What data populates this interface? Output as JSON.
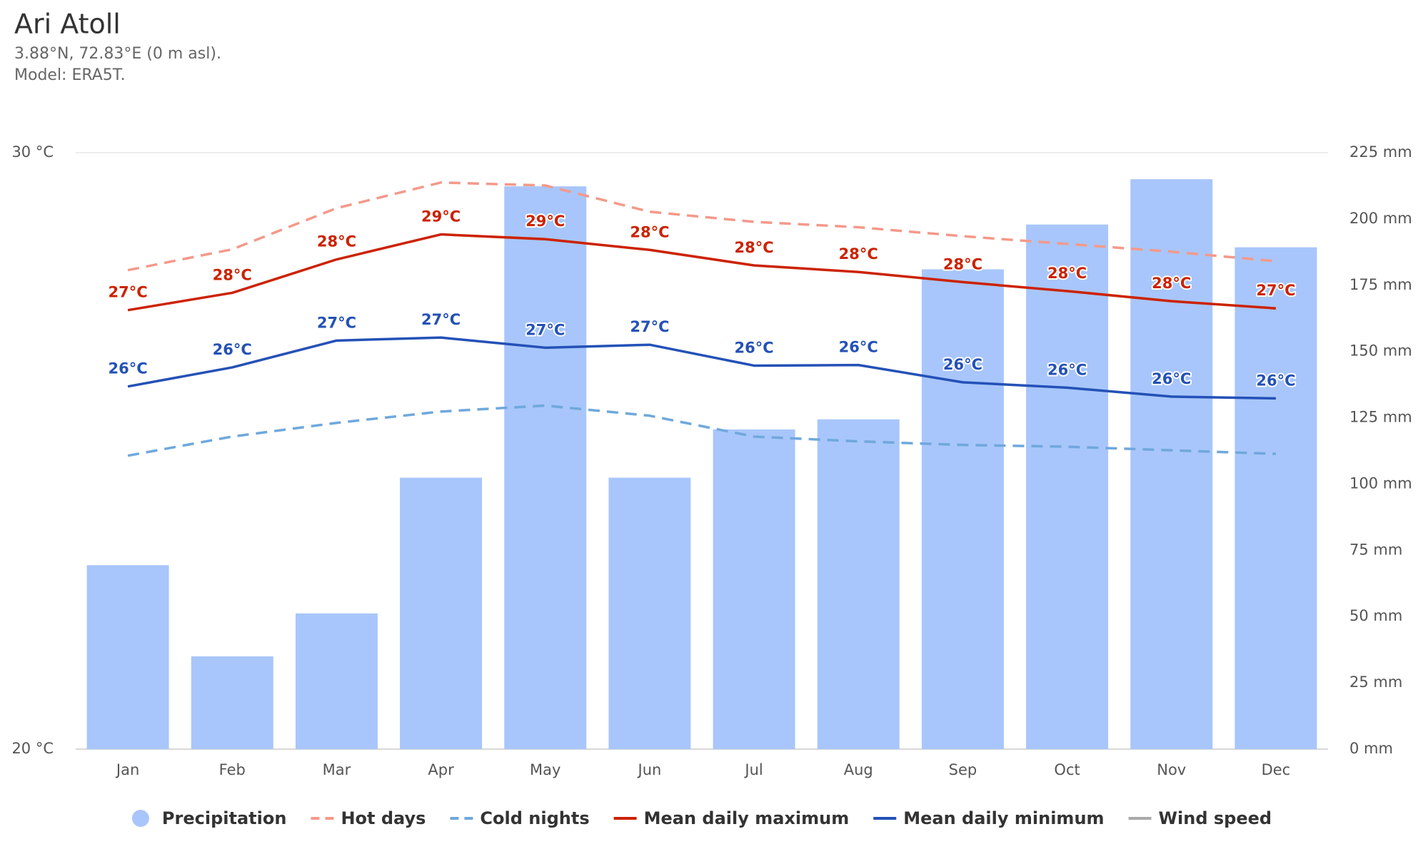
{
  "chart_data": {
    "type": "combo",
    "title": "Ari Atoll",
    "subtitle": [
      "3.88°N, 72.83°E (0 m asl).",
      "Model: ERA5T."
    ],
    "categories": [
      "Jan",
      "Feb",
      "Mar",
      "Apr",
      "May",
      "Jun",
      "Jul",
      "Aug",
      "Sep",
      "Oct",
      "Nov",
      "Dec"
    ],
    "ylim": [
      20,
      30
    ],
    "yticks": [
      {
        "value": 20,
        "label": "20 °C"
      },
      {
        "value": 30,
        "label": "30 °C"
      }
    ],
    "y2lim": [
      0,
      225
    ],
    "y2ticks": [
      {
        "value": 0,
        "label": "0 mm"
      },
      {
        "value": 25,
        "label": "25 mm"
      },
      {
        "value": 50,
        "label": "50 mm"
      },
      {
        "value": 75,
        "label": "75 mm"
      },
      {
        "value": 100,
        "label": "100 mm"
      },
      {
        "value": 125,
        "label": "125 mm"
      },
      {
        "value": 150,
        "label": "150 mm"
      },
      {
        "value": 175,
        "label": "175 mm"
      },
      {
        "value": 200,
        "label": "200 mm"
      },
      {
        "value": 225,
        "label": "225 mm"
      }
    ],
    "grid": true,
    "legend": "bottom",
    "series": [
      {
        "name": "Precipitation",
        "type": "bar",
        "axis": "y2",
        "color": "#a8c6fb",
        "values": [
          69.4,
          35.0,
          51.2,
          102.4,
          212.3,
          102.4,
          120.6,
          124.4,
          181.0,
          197.9,
          215.0,
          189.3
        ]
      },
      {
        "name": "Hot days",
        "type": "line",
        "dashed": true,
        "color": "#f4998a",
        "values": [
          28.03,
          28.38,
          29.07,
          29.5,
          29.45,
          29.01,
          28.84,
          28.75,
          28.6,
          28.47,
          28.34,
          28.18
        ]
      },
      {
        "name": "Cold nights",
        "type": "line",
        "dashed": true,
        "color": "#6fa8dc",
        "values": [
          24.92,
          25.24,
          25.47,
          25.66,
          25.76,
          25.59,
          25.24,
          25.16,
          25.1,
          25.07,
          25.01,
          24.95
        ]
      },
      {
        "name": "Mean daily maximum",
        "type": "line",
        "color": "#cc2200",
        "values": [
          27.36,
          27.65,
          28.21,
          28.63,
          28.55,
          28.37,
          28.11,
          28.0,
          27.83,
          27.68,
          27.51,
          27.39
        ],
        "value_labels": [
          "27°C",
          "28°C",
          "28°C",
          "29°C",
          "29°C",
          "28°C",
          "28°C",
          "28°C",
          "28°C",
          "28°C",
          "28°C",
          "27°C"
        ]
      },
      {
        "name": "Mean daily minimum",
        "type": "line",
        "color": "#2451b7",
        "values": [
          26.08,
          26.4,
          26.85,
          26.9,
          26.73,
          26.78,
          26.43,
          26.44,
          26.15,
          26.06,
          25.91,
          25.88
        ],
        "value_labels": [
          "26°C",
          "26°C",
          "27°C",
          "27°C",
          "27°C",
          "27°C",
          "26°C",
          "26°C",
          "26°C",
          "26°C",
          "26°C",
          "26°C"
        ]
      },
      {
        "name": "Wind speed",
        "type": "line",
        "color": "#aaaaaa",
        "visible": false
      }
    ]
  }
}
